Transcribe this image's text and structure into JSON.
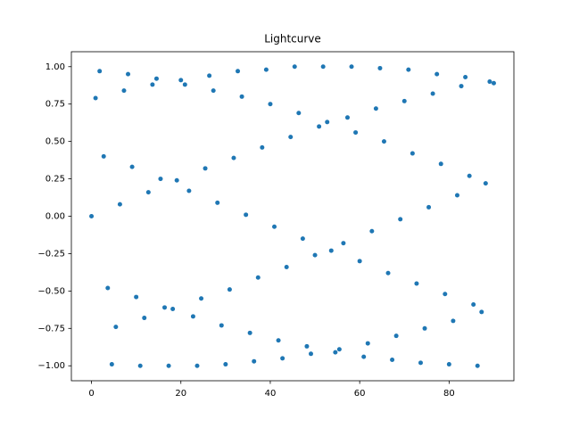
{
  "chart_data": {
    "type": "scatter",
    "title": "Lightcurve",
    "color": "#1f77b4",
    "x": [
      0,
      0.91,
      1.82,
      2.73,
      3.64,
      4.55,
      5.45,
      6.36,
      7.27,
      8.18,
      9.09,
      10,
      10.91,
      11.82,
      12.73,
      13.64,
      14.55,
      15.45,
      16.36,
      17.27,
      18.18,
      19.09,
      20,
      20.91,
      21.82,
      22.73,
      23.64,
      24.55,
      25.45,
      26.36,
      27.27,
      28.18,
      29.09,
      30,
      30.91,
      31.82,
      32.73,
      33.64,
      34.55,
      35.45,
      36.36,
      37.27,
      38.18,
      39.09,
      40,
      40.91,
      41.82,
      42.73,
      43.64,
      44.55,
      45.45,
      46.36,
      47.27,
      48.18,
      49.09,
      50,
      50.91,
      51.82,
      52.73,
      53.64,
      54.55,
      55.45,
      56.36,
      57.27,
      58.18,
      59.09,
      60,
      60.91,
      61.82,
      62.73,
      63.64,
      64.55,
      65.45,
      66.36,
      67.27,
      68.18,
      69.09,
      70,
      70.91,
      71.82,
      72.73,
      73.64,
      74.55,
      75.45,
      76.36,
      77.27,
      78.18,
      79.09,
      80,
      80.91,
      81.82,
      82.73,
      83.64,
      84.55,
      85.45,
      86.36,
      87.27,
      88.18,
      89.09,
      90
    ],
    "values": [
      0,
      0.79,
      0.97,
      0.4,
      -0.48,
      -0.99,
      -0.74,
      0.08,
      0.84,
      0.95,
      0.33,
      -0.54,
      -1.0,
      -0.68,
      0.16,
      0.88,
      0.92,
      0.25,
      -0.61,
      -1.0,
      -0.62,
      0.24,
      0.91,
      0.88,
      0.17,
      -0.67,
      -1.0,
      -0.55,
      0.32,
      0.94,
      0.84,
      0.09,
      -0.73,
      -0.99,
      -0.49,
      0.39,
      0.97,
      0.8,
      0.01,
      -0.78,
      -0.97,
      -0.41,
      0.46,
      0.98,
      0.75,
      -0.07,
      -0.83,
      -0.95,
      -0.34,
      0.53,
      1.0,
      0.69,
      -0.15,
      -0.87,
      -0.92,
      -0.26,
      0.6,
      1.0,
      0.63,
      -0.23,
      -0.91,
      -0.89,
      -0.18,
      0.66,
      1.0,
      0.56,
      -0.3,
      -0.94,
      -0.85,
      -0.1,
      0.72,
      0.99,
      0.5,
      -0.38,
      -0.96,
      -0.8,
      -0.02,
      0.77,
      0.98,
      0.42,
      -0.45,
      -0.98,
      -0.75,
      0.06,
      0.82,
      0.95,
      0.35,
      -0.52,
      -0.99,
      -0.7,
      0.14,
      0.87,
      0.93,
      0.27,
      -0.59,
      -1.0,
      -0.64,
      0.22,
      0.9,
      0.89
    ],
    "xlim": [
      -4.5,
      94.5
    ],
    "xticks": [
      0,
      20,
      40,
      60,
      80
    ],
    "ylim": [
      -1.1,
      1.1
    ],
    "yticks": [
      {
        "value": -1,
        "label": "−1.00"
      },
      {
        "value": -0.75,
        "label": "−0.75"
      },
      {
        "value": -0.5,
        "label": "−0.50"
      },
      {
        "value": -0.25,
        "label": "−0.25"
      },
      {
        "value": 0,
        "label": "0.00"
      },
      {
        "value": 0.25,
        "label": "0.25"
      },
      {
        "value": 0.5,
        "label": "0.50"
      },
      {
        "value": 0.75,
        "label": "0.75"
      },
      {
        "value": 1,
        "label": "1.00"
      }
    ],
    "grid": false
  }
}
